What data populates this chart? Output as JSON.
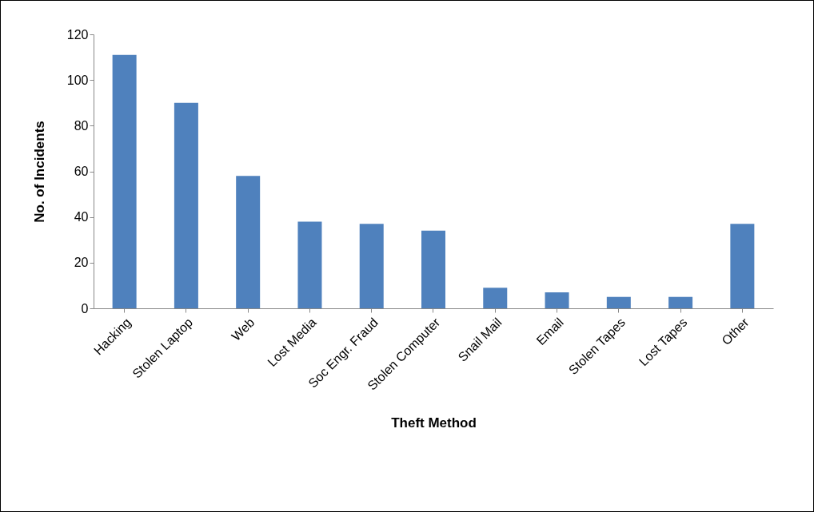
{
  "chart_data": {
    "type": "bar",
    "xlabel": "Theft Method",
    "ylabel": "No. of Incidents",
    "categories": [
      "Hacking",
      "Stolen Laptop",
      "Web",
      "Lost Media",
      "Soc Engr. Fraud",
      "Stolen Computer",
      "Snail Mail",
      "Email",
      "Stolen Tapes",
      "Lost Tapes",
      "Other"
    ],
    "values": [
      111,
      90,
      58,
      38,
      37,
      34,
      9,
      7,
      5,
      5,
      37
    ],
    "color": "#4f81bd",
    "ylim": [
      0,
      120
    ],
    "yticks": [
      0,
      20,
      40,
      60,
      80,
      100,
      120
    ],
    "grid": false,
    "legend": false
  }
}
